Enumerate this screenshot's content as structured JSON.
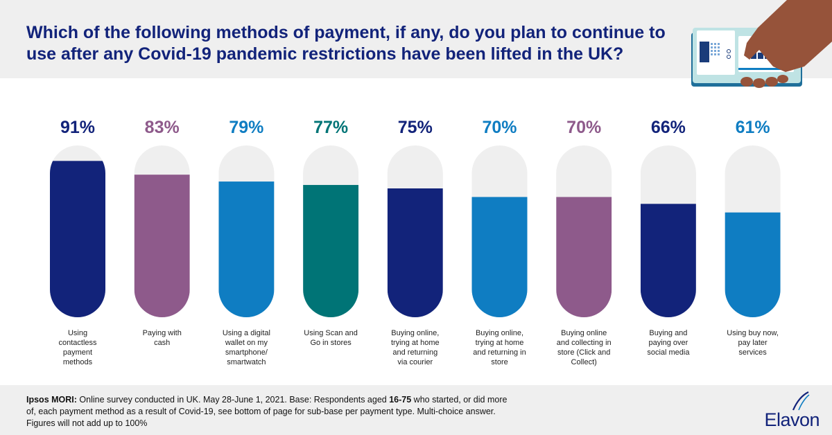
{
  "title": "Which of the following methods of payment, if any, do you plan to continue to use after any Covid-19 pandemic restrictions have been lifted in the UK?",
  "footnote": {
    "source": "Ipsos MORI:",
    "text_1": " Online survey conducted in UK. May 28-June 1, 2021. Base: Respondents aged ",
    "age_range": "16-75",
    "text_2": " who started, or did more of, each payment method as a result of Covid-19, see bottom of page for sub-base per payment type. Multi-choice answer. Figures will not add up to 100%"
  },
  "brand": {
    "name": "Elavon",
    "color": "#12237a"
  },
  "colors": {
    "navy": "#12237a",
    "purple": "#8e5a8b",
    "blue": "#0f7dc2",
    "teal": "#007476",
    "track": "#efefef"
  },
  "chart_data": {
    "type": "bar",
    "ylim": [
      0,
      100
    ],
    "categories": [
      "Using contactless payment methods",
      "Paying with cash",
      "Using a digital wallet on my smartphone/ smartwatch",
      "Using Scan and Go in stores",
      "Buying online, trying at home and returning via courier",
      "Buying online, trying at home and returning in store",
      "Buying online and collecting in store (Click and Collect)",
      "Buying and paying over social media",
      "Using buy now, pay later services"
    ],
    "category_lines": [
      [
        "Using",
        "contactless",
        "payment",
        "methods"
      ],
      [
        "Paying with",
        "cash"
      ],
      [
        "Using a digital",
        "wallet on my",
        "smartphone/",
        "smartwatch"
      ],
      [
        "Using Scan and",
        "Go in stores"
      ],
      [
        "Buying online,",
        "trying at home",
        "and returning",
        "via courier"
      ],
      [
        "Buying online,",
        "trying at home",
        "and returning in",
        "store"
      ],
      [
        "Buying online",
        "and collecting in",
        "store (Click and",
        "Collect)"
      ],
      [
        "Buying and",
        "paying over",
        "social media"
      ],
      [
        "Using buy now,",
        "pay later",
        "services"
      ]
    ],
    "values": [
      91,
      83,
      79,
      77,
      75,
      70,
      70,
      66,
      61
    ],
    "value_labels": [
      "91%",
      "83%",
      "79%",
      "77%",
      "75%",
      "70%",
      "70%",
      "66%",
      "61%"
    ],
    "bar_colors": [
      "#12237a",
      "#8e5a8b",
      "#0f7dc2",
      "#007476",
      "#12237a",
      "#0f7dc2",
      "#8e5a8b",
      "#12237a",
      "#0f7dc2"
    ],
    "label_colors": [
      "#12237a",
      "#8e5a8b",
      "#0f7dc2",
      "#007476",
      "#12237a",
      "#0f7dc2",
      "#8e5a8b",
      "#12237a",
      "#0f7dc2"
    ]
  }
}
